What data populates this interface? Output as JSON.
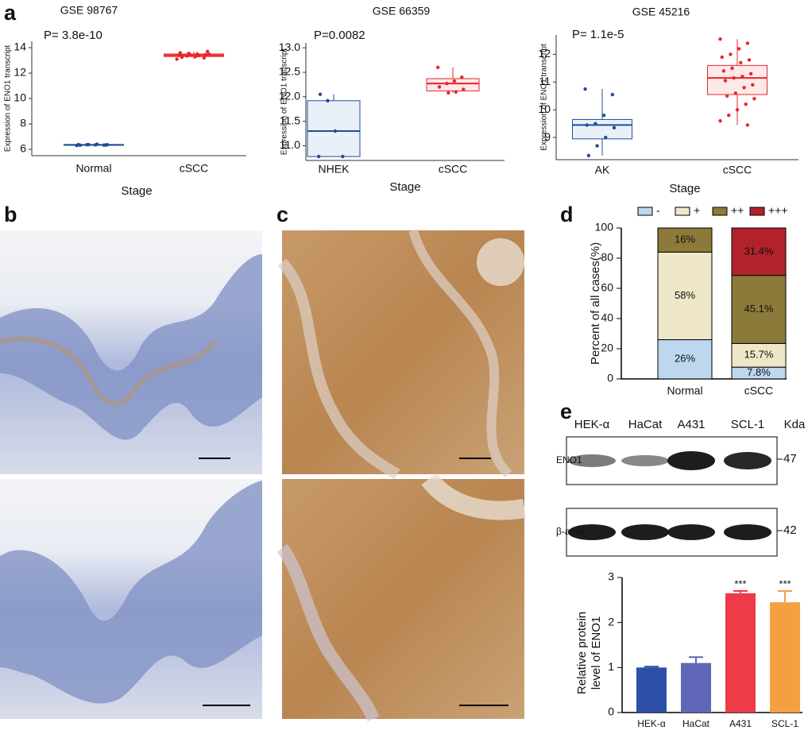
{
  "panel_labels": [
    "a",
    "b",
    "c",
    "d",
    "e"
  ],
  "chart_data": [
    {
      "type": "box",
      "title": "GSE 98767",
      "annotation": "P= 3.8e-10",
      "ylabel": "Expression of ENO1 transcript",
      "xlabel": "Stage",
      "categories": [
        "Normal",
        "cSCC"
      ],
      "colors": [
        "#1f4e99",
        "#e8252b"
      ],
      "ylim": [
        5.5,
        14.5
      ],
      "yticks": [
        6,
        8,
        10,
        12,
        14
      ],
      "boxes": [
        {
          "min": 6.3,
          "q1": 6.32,
          "median": 6.35,
          "q3": 6.38,
          "max": 6.42,
          "points": [
            6.3,
            6.33,
            6.35,
            6.36,
            6.38,
            6.34,
            6.4,
            6.37,
            6.32,
            6.36
          ]
        },
        {
          "min": 13.1,
          "q1": 13.3,
          "median": 13.4,
          "q3": 13.5,
          "max": 13.7,
          "points": [
            13.1,
            13.2,
            13.3,
            13.35,
            13.4,
            13.45,
            13.5,
            13.55,
            13.6,
            13.7,
            13.38,
            13.42,
            13.25,
            13.48
          ]
        }
      ]
    },
    {
      "type": "box",
      "title": "GSE 66359",
      "annotation": "P=0.0082",
      "ylabel": "Expression of ENO1 transcript",
      "xlabel": "Stage",
      "categories": [
        "NHEK",
        "cSCC"
      ],
      "colors": [
        "#1f4e99",
        "#e8252b"
      ],
      "ylim": [
        10.7,
        13.1
      ],
      "yticks": [
        {
          "value": 11,
          "label": "11.0"
        },
        11.5,
        {
          "value": 12,
          "label": "12.0"
        },
        12.5,
        {
          "value": 13,
          "label": "13.0"
        }
      ],
      "boxes": [
        {
          "min": 10.78,
          "q1": 10.78,
          "median": 11.3,
          "q3": 11.92,
          "max": 12.05,
          "points": [
            10.78,
            10.78,
            11.3,
            11.92,
            12.05
          ]
        },
        {
          "min": 12.08,
          "q1": 12.12,
          "median": 12.27,
          "q3": 12.37,
          "max": 12.6,
          "points": [
            12.6,
            12.4,
            12.32,
            12.27,
            12.2,
            12.15,
            12.1,
            12.08
          ]
        }
      ]
    },
    {
      "type": "box",
      "title": "GSE 45216",
      "annotation": "P= 1.1e-5",
      "ylabel": "Expression of ENO1 transcript",
      "xlabel": "Stage",
      "categories": [
        "AK",
        "cSCC"
      ],
      "colors": [
        "#1f4e99",
        "#e8252b"
      ],
      "ylim": [
        8.2,
        12.7
      ],
      "yticks": [
        9,
        10,
        11,
        12
      ],
      "boxes": [
        {
          "min": 8.35,
          "q1": 8.95,
          "median": 9.45,
          "q3": 9.65,
          "max": 10.75,
          "points": [
            10.75,
            10.55,
            9.8,
            9.5,
            9.45,
            9.35,
            9.0,
            8.7,
            8.35
          ]
        },
        {
          "min": 9.45,
          "q1": 10.55,
          "median": 11.15,
          "q3": 11.6,
          "max": 12.55,
          "points": [
            12.55,
            12.4,
            12.2,
            12.0,
            11.9,
            11.8,
            11.7,
            11.5,
            11.4,
            11.3,
            11.2,
            11.15,
            11.05,
            10.9,
            10.8,
            10.6,
            10.5,
            10.4,
            10.2,
            10.0,
            9.8,
            9.6,
            9.45
          ]
        }
      ]
    },
    {
      "type": "stacked_bar",
      "ylabel": "Percent of all cases(%)",
      "categories": [
        "Normal",
        "cSCC"
      ],
      "ylim": [
        0,
        100
      ],
      "yticks": [
        0,
        20,
        40,
        60,
        80,
        100
      ],
      "series": [
        {
          "name": "-",
          "color": "#bcd7ee",
          "values": [
            26,
            7.8
          ],
          "value_labels": [
            "26%",
            "7.8%"
          ]
        },
        {
          "name": "+",
          "color": "#eee7c8",
          "values": [
            58,
            15.7
          ],
          "value_labels": [
            "58%",
            "15.7%"
          ]
        },
        {
          "name": "++",
          "color": "#8b7a3a",
          "values": [
            16,
            45.1
          ],
          "value_labels": [
            "16%",
            "45.1%"
          ]
        },
        {
          "name": "+++",
          "color": "#b2222c",
          "values": [
            0,
            31.4
          ],
          "value_labels": [
            null,
            "31.4%"
          ]
        }
      ]
    },
    {
      "type": "bar",
      "ylabel": [
        "Relative protein",
        "level of ENO1"
      ],
      "categories": [
        "HEK-α",
        "HaCat",
        "A431",
        "SCL-1"
      ],
      "values": [
        1.0,
        1.1,
        2.65,
        2.45
      ],
      "errors": [
        0.02,
        0.13,
        0.05,
        0.25
      ],
      "significance": [
        null,
        null,
        "***",
        "***"
      ],
      "colors": [
        "#2e4fa8",
        "#6066b8",
        "#ee3b48",
        "#f5a040"
      ],
      "ylim": [
        0,
        3
      ],
      "yticks": [
        0,
        1,
        2,
        3
      ]
    }
  ],
  "western_blot": {
    "lanes": [
      "HEK-α",
      "HaCat",
      "A431",
      "SCL-1"
    ],
    "unit": "Kda",
    "rows": [
      {
        "label": "ENO1",
        "size": "47"
      },
      {
        "label": "β-actin",
        "size": "42"
      }
    ]
  }
}
